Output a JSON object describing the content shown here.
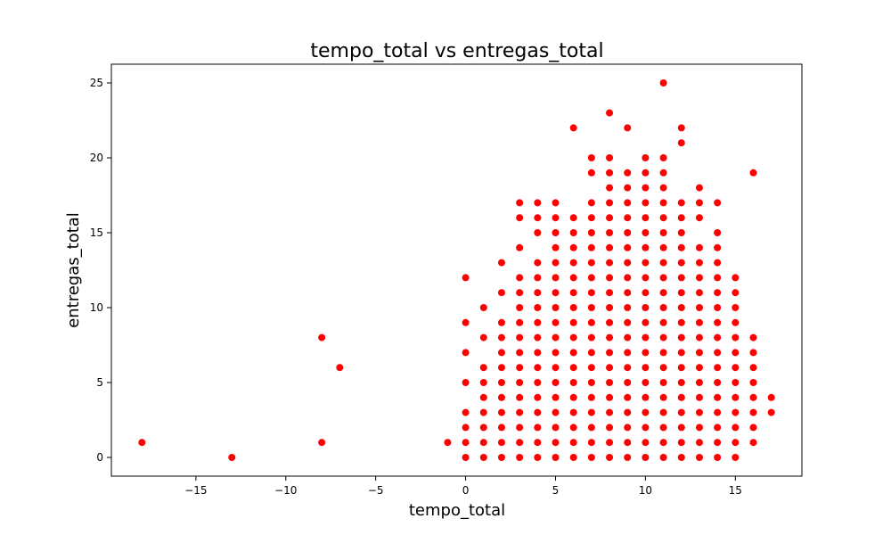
{
  "chart_data": {
    "type": "scatter",
    "title": "tempo_total vs entregas_total",
    "xlabel": "tempo_total",
    "ylabel": "entregas_total",
    "xlim": [
      -19.7,
      18.7
    ],
    "ylim": [
      -1.25,
      26.25
    ],
    "xticks": [
      -15,
      -10,
      -5,
      0,
      5,
      10,
      15
    ],
    "yticks": [
      0,
      5,
      10,
      15,
      20,
      25
    ],
    "grid": false,
    "marker_color": "#ff0000",
    "columns": {
      "-18": [
        1
      ],
      "-13": [
        0
      ],
      "-8": [
        1,
        8
      ],
      "-7": [
        6
      ],
      "-1": [
        1
      ],
      "0": [
        0,
        1,
        2,
        3,
        5,
        7,
        9,
        12
      ],
      "1": [
        0,
        1,
        2,
        3,
        4,
        5,
        6,
        8,
        10
      ],
      "2": [
        0,
        1,
        2,
        3,
        4,
        5,
        6,
        7,
        8,
        9,
        11,
        13
      ],
      "3": [
        0,
        1,
        2,
        3,
        4,
        5,
        6,
        7,
        8,
        9,
        10,
        11,
        12,
        14,
        16,
        17
      ],
      "4": [
        0,
        1,
        2,
        3,
        4,
        5,
        6,
        7,
        8,
        9,
        10,
        11,
        12,
        13,
        15,
        16,
        17
      ],
      "5": [
        0,
        1,
        2,
        3,
        4,
        5,
        6,
        7,
        8,
        9,
        10,
        11,
        12,
        13,
        14,
        15,
        16,
        17
      ],
      "6": [
        0,
        1,
        2,
        3,
        4,
        5,
        6,
        7,
        8,
        9,
        10,
        11,
        12,
        13,
        14,
        15,
        16,
        22
      ],
      "7": [
        0,
        1,
        2,
        3,
        4,
        5,
        6,
        7,
        8,
        9,
        10,
        11,
        12,
        13,
        14,
        15,
        16,
        17,
        19,
        20
      ],
      "8": [
        0,
        1,
        2,
        3,
        4,
        5,
        6,
        7,
        8,
        9,
        10,
        11,
        12,
        13,
        14,
        15,
        16,
        17,
        18,
        19,
        20,
        23
      ],
      "9": [
        0,
        1,
        2,
        3,
        4,
        5,
        6,
        7,
        8,
        9,
        10,
        11,
        12,
        13,
        14,
        15,
        16,
        17,
        18,
        19,
        22
      ],
      "10": [
        0,
        1,
        2,
        3,
        4,
        5,
        6,
        7,
        8,
        9,
        10,
        11,
        12,
        13,
        14,
        15,
        16,
        17,
        18,
        19,
        20
      ],
      "11": [
        0,
        1,
        2,
        3,
        4,
        5,
        6,
        7,
        8,
        9,
        10,
        11,
        12,
        13,
        14,
        15,
        16,
        17,
        18,
        19,
        20,
        25
      ],
      "12": [
        0,
        1,
        2,
        3,
        4,
        5,
        6,
        7,
        8,
        9,
        10,
        11,
        12,
        13,
        14,
        15,
        16,
        17,
        21,
        22
      ],
      "13": [
        0,
        1,
        2,
        3,
        4,
        5,
        6,
        7,
        8,
        9,
        10,
        11,
        12,
        13,
        14,
        16,
        17,
        18
      ],
      "14": [
        0,
        1,
        2,
        3,
        4,
        5,
        6,
        7,
        8,
        9,
        10,
        11,
        12,
        13,
        14,
        15,
        17
      ],
      "15": [
        0,
        1,
        2,
        3,
        4,
        5,
        6,
        7,
        8,
        9,
        10,
        11,
        12
      ],
      "16": [
        1,
        2,
        3,
        4,
        5,
        6,
        7,
        8,
        19
      ],
      "17": [
        3,
        4
      ]
    }
  }
}
